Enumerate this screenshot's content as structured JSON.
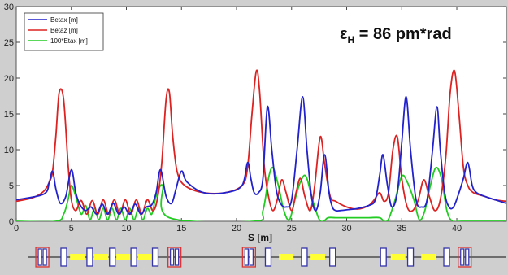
{
  "chart_data": {
    "type": "line",
    "title": "",
    "xlabel": "S [m]",
    "ylabel": "",
    "xlim": [
      0,
      44.5
    ],
    "ylim": [
      0,
      30
    ],
    "xticks": [
      0,
      5,
      10,
      15,
      20,
      25,
      30,
      35,
      40
    ],
    "yticks": [
      0,
      5,
      10,
      15,
      20,
      25,
      30
    ],
    "grid": false,
    "legend_position": "top-left",
    "annotation": {
      "prefix": "ε",
      "subscript": "H",
      "text": " = 86 pm*rad"
    },
    "series": [
      {
        "name": "Betax [m]",
        "color": "#2222cc",
        "x": [
          0,
          2.5,
          3.0,
          3.3,
          3.6,
          4.0,
          4.5,
          5.0,
          5.4,
          5.8,
          6.3,
          6.8,
          7.3,
          7.8,
          8.3,
          8.8,
          9.3,
          9.8,
          10.3,
          10.8,
          11.3,
          11.8,
          12.3,
          12.7,
          13.1,
          13.6,
          14.1,
          14.5,
          15.0,
          15.5,
          17,
          19,
          20.5,
          21.0,
          21.3,
          21.6,
          22.0,
          22.4,
          22.8,
          23.2,
          23.6,
          24.0,
          24.5,
          25.0,
          25.5,
          26.0,
          26.4,
          26.8,
          27.2,
          27.6,
          28.0,
          28.4,
          28.7,
          29.0,
          29.4,
          30,
          31,
          32,
          32.6,
          33.0,
          33.3,
          33.7,
          34.1,
          34.6,
          35.0,
          35.4,
          35.8,
          36.3,
          36.8,
          37.3,
          37.8,
          38.2,
          38.5,
          38.9,
          39.3,
          39.7,
          40.2,
          40.6,
          41.0,
          41.4,
          41.8,
          42.5,
          43.5,
          44.5
        ],
        "y": [
          3.0,
          3.8,
          5.5,
          7.0,
          4.5,
          2.5,
          3.5,
          7.2,
          4.0,
          2.3,
          1.5,
          2.0,
          1.0,
          2.4,
          1.0,
          2.5,
          1.0,
          2.0,
          1.0,
          2.4,
          1.0,
          2.0,
          2.3,
          4.0,
          7.2,
          3.5,
          2.5,
          4.5,
          7.0,
          5.5,
          4.0,
          4.0,
          5.0,
          8.2,
          6.0,
          4.0,
          4.0,
          6.0,
          16.0,
          10.0,
          4.5,
          2.5,
          2.0,
          3.0,
          10.0,
          17.4,
          10.0,
          3.5,
          1.5,
          4.0,
          9.3,
          4.0,
          2.0,
          1.5,
          1.5,
          1.6,
          1.8,
          2.2,
          3.0,
          6.5,
          9.3,
          5.0,
          2.0,
          4.0,
          11.0,
          17.4,
          10.0,
          3.0,
          2.0,
          3.0,
          10.0,
          16.0,
          10.0,
          4.0,
          2.0,
          2.0,
          4.0,
          6.0,
          8.2,
          5.0,
          4.0,
          3.5,
          3.0,
          2.5
        ]
      },
      {
        "name": "Betaz [m]",
        "color": "#dd2222",
        "x": [
          0,
          1.5,
          2.5,
          3.0,
          3.3,
          3.6,
          3.9,
          4.3,
          4.7,
          5.0,
          5.4,
          5.9,
          6.4,
          6.9,
          7.4,
          7.9,
          8.4,
          8.9,
          9.4,
          9.9,
          10.4,
          10.9,
          11.4,
          11.9,
          12.4,
          12.8,
          13.2,
          13.6,
          13.9,
          14.2,
          14.6,
          15.3,
          17,
          19,
          20.5,
          21.0,
          21.4,
          21.8,
          22.1,
          22.5,
          22.9,
          23.3,
          23.7,
          24.1,
          24.5,
          25.0,
          25.4,
          25.8,
          26.2,
          26.7,
          27.1,
          27.6,
          28.0,
          28.5,
          29.0,
          30,
          31,
          32,
          32.5,
          33.0,
          33.4,
          33.8,
          34.2,
          34.6,
          35.0,
          35.5,
          36.0,
          36.5,
          37.0,
          37.5,
          38.0,
          38.5,
          39.0,
          39.4,
          39.8,
          40.2,
          40.6,
          41.0,
          41.5,
          42.5,
          43.5,
          44.5
        ],
        "y": [
          2.8,
          3.3,
          4.2,
          5.5,
          7.0,
          12.0,
          18.0,
          17.0,
          8.0,
          3.0,
          1.5,
          2.9,
          1.0,
          2.9,
          1.0,
          3.0,
          1.0,
          3.0,
          1.0,
          3.0,
          1.0,
          3.0,
          1.0,
          3.0,
          1.5,
          3.0,
          8.0,
          17.0,
          18.0,
          12.0,
          7.0,
          5.0,
          4.0,
          4.0,
          5.0,
          7.5,
          15.0,
          21.0,
          18.0,
          8.0,
          3.5,
          1.5,
          3.0,
          5.8,
          4.0,
          1.5,
          4.0,
          6.0,
          3.5,
          1.5,
          5.0,
          11.8,
          8.0,
          3.5,
          2.8,
          2.0,
          1.7,
          2.2,
          3.0,
          4.0,
          2.8,
          4.0,
          10.0,
          11.8,
          6.0,
          2.0,
          1.5,
          3.0,
          5.8,
          3.5,
          1.5,
          3.0,
          9.0,
          18.0,
          21.0,
          15.0,
          7.5,
          5.0,
          4.0,
          3.5,
          3.0,
          2.8
        ]
      },
      {
        "name": "100*Etax [m]",
        "color": "#22cc22",
        "x": [
          0,
          3.6,
          4.3,
          4.7,
          5.0,
          5.4,
          5.9,
          6.3,
          6.7,
          7.1,
          7.5,
          7.9,
          8.3,
          8.7,
          9.1,
          9.5,
          9.9,
          10.3,
          10.7,
          11.1,
          11.5,
          11.9,
          12.3,
          12.7,
          13.3,
          13.9,
          21.6,
          22.4,
          22.9,
          23.3,
          23.8,
          24.3,
          24.8,
          25.3,
          25.8,
          26.3,
          26.9,
          27.5,
          27.9,
          28.3,
          29.0,
          30,
          31,
          32,
          33,
          33.4,
          33.8,
          34.4,
          35.0,
          35.5,
          36.1,
          36.6,
          37.1,
          37.6,
          38.1,
          38.6,
          39.1,
          39.6,
          40.4,
          44.5
        ],
        "y": [
          0.0,
          0.0,
          1.0,
          3.0,
          5.0,
          3.5,
          1.0,
          2.2,
          0.2,
          1.8,
          0.2,
          1.8,
          0.2,
          1.8,
          0.2,
          1.8,
          0.2,
          1.8,
          0.2,
          1.8,
          0.2,
          1.8,
          1.0,
          3.5,
          5.0,
          0.5,
          0.0,
          1.5,
          6.0,
          7.5,
          5.0,
          1.5,
          0.2,
          3.0,
          5.5,
          6.3,
          3.0,
          0.3,
          0.0,
          0.5,
          0.5,
          0.5,
          0.5,
          0.5,
          0.5,
          0.0,
          0.3,
          3.0,
          6.3,
          5.5,
          3.0,
          0.2,
          1.5,
          5.0,
          7.5,
          6.0,
          1.5,
          0.0,
          0.0,
          0.0
        ]
      }
    ]
  },
  "lattice": {
    "colors": {
      "dipole": "#ffff33",
      "quad_fill": "#ffffff",
      "quad_edge": "#3333aa",
      "sext_edge": "#dd3333",
      "beamline": "#333333"
    },
    "elements": [
      {
        "type": "quad-pair",
        "s": 3.1
      },
      {
        "type": "quad",
        "s": 5.0
      },
      {
        "type": "dipole",
        "s": 6.2
      },
      {
        "type": "quad",
        "s": 7.3
      },
      {
        "type": "dipole",
        "s": 8.3
      },
      {
        "type": "quad",
        "s": 9.3
      },
      {
        "type": "dipole",
        "s": 10.3
      },
      {
        "type": "quad",
        "s": 11.2
      },
      {
        "type": "dipole",
        "s": 12.2
      },
      {
        "type": "quad",
        "s": 13.1
      },
      {
        "type": "quad-pair",
        "s": 14.8
      },
      {
        "type": "quad-pair",
        "s": 21.4
      },
      {
        "type": "quad",
        "s": 23.1
      },
      {
        "type": "dipole",
        "s": 24.7
      },
      {
        "type": "quad",
        "s": 26.3
      },
      {
        "type": "dipole",
        "s": 27.5
      },
      {
        "type": "quad",
        "s": 28.8
      },
      {
        "type": "quad",
        "s": 33.3
      },
      {
        "type": "dipole",
        "s": 34.6
      },
      {
        "type": "quad",
        "s": 35.7
      },
      {
        "type": "dipole",
        "s": 37.3
      },
      {
        "type": "quad",
        "s": 38.9
      },
      {
        "type": "quad-pair",
        "s": 40.5
      }
    ]
  }
}
